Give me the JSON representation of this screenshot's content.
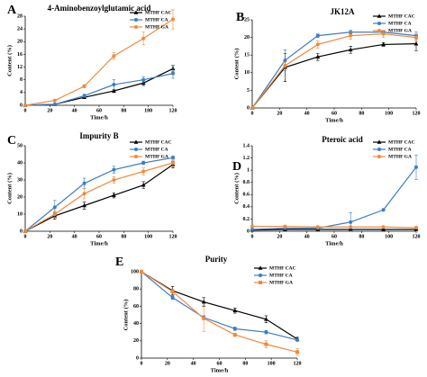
{
  "chart_data": [
    {
      "type": "line",
      "panel_label": "A",
      "title": "4-Aminobenzoylglutamic acid",
      "xlabel": "Time/h",
      "ylabel": "Content (%)",
      "x": [
        0,
        24,
        48,
        72,
        96,
        120
      ],
      "xlim": [
        0,
        120
      ],
      "xticks": [
        0,
        20,
        40,
        60,
        80,
        100,
        120
      ],
      "ylim": [
        0,
        28
      ],
      "yticks": [
        0,
        4,
        8,
        12,
        16,
        20,
        24,
        28
      ],
      "legend": "upper right",
      "series": [
        {
          "name": "MTHF CAC",
          "color": "#000000",
          "marker": "triangle",
          "values": [
            0,
            0.3,
            2.5,
            4.5,
            7,
            11.5
          ],
          "errors": [
            0,
            0.2,
            0.3,
            0.5,
            0.8,
            1
          ]
        },
        {
          "name": "MTHF CA",
          "color": "#3b7dc4",
          "marker": "circle",
          "values": [
            0,
            0.3,
            3,
            6.5,
            8,
            10
          ],
          "errors": [
            0,
            0.2,
            0.5,
            1.5,
            1,
            1.5
          ]
        },
        {
          "name": "MTHF GA",
          "color": "#f08a3c",
          "marker": "circle",
          "values": [
            0,
            1.5,
            6,
            15.5,
            21,
            27
          ],
          "errors": [
            0,
            0.3,
            0.5,
            1,
            2,
            3
          ]
        }
      ]
    },
    {
      "type": "line",
      "panel_label": "B",
      "title": "JK12A",
      "xlabel": "Time/h",
      "ylabel": "Content (%)",
      "x": [
        0,
        24,
        48,
        72,
        96,
        120
      ],
      "xlim": [
        0,
        120
      ],
      "xticks": [
        0,
        20,
        40,
        60,
        80,
        100,
        120
      ],
      "ylim": [
        0,
        25
      ],
      "yticks": [
        0,
        5,
        10,
        15,
        20,
        25
      ],
      "legend": "upper right",
      "series": [
        {
          "name": "MTHF CAC",
          "color": "#000000",
          "marker": "triangle",
          "values": [
            0,
            11.5,
            14.5,
            16.5,
            18,
            18.2
          ],
          "errors": [
            0,
            4,
            1,
            1,
            0.5,
            2
          ]
        },
        {
          "name": "MTHF CA",
          "color": "#3b7dc4",
          "marker": "circle",
          "values": [
            0,
            13.5,
            20.5,
            21.5,
            21.5,
            20.5
          ],
          "errors": [
            0,
            3,
            0.5,
            0.5,
            0.5,
            1
          ]
        },
        {
          "name": "MTHF GA",
          "color": "#f08a3c",
          "marker": "circle",
          "values": [
            0,
            12,
            18,
            20.5,
            21,
            20
          ],
          "errors": [
            0,
            1,
            1,
            1,
            1,
            1
          ]
        }
      ]
    },
    {
      "type": "line",
      "panel_label": "C",
      "title": "Impurity B",
      "xlabel": "Time/h",
      "ylabel": "Content (%)",
      "x": [
        0,
        24,
        48,
        72,
        96,
        120
      ],
      "xlim": [
        0,
        120
      ],
      "xticks": [
        0,
        20,
        40,
        60,
        80,
        100,
        120
      ],
      "ylim": [
        0,
        50
      ],
      "yticks": [
        0,
        10,
        20,
        30,
        40,
        50
      ],
      "legend": "upper right",
      "series": [
        {
          "name": "MTHF CAC",
          "color": "#000000",
          "marker": "triangle",
          "values": [
            0,
            9,
            15,
            21,
            27,
            39
          ],
          "errors": [
            0,
            2,
            2,
            1.5,
            2,
            2
          ]
        },
        {
          "name": "MTHF CA",
          "color": "#3b7dc4",
          "marker": "circle",
          "values": [
            0,
            14,
            28,
            36,
            40,
            43
          ],
          "errors": [
            0,
            4,
            3,
            2,
            1,
            1
          ]
        },
        {
          "name": "MTHF GA",
          "color": "#f08a3c",
          "marker": "circle",
          "values": [
            0,
            10,
            22,
            30,
            35,
            40
          ],
          "errors": [
            0,
            2,
            3,
            2,
            2,
            2
          ]
        }
      ]
    },
    {
      "type": "line",
      "panel_label": "D",
      "title": "Pteroic acid",
      "xlabel": "Time/h",
      "ylabel": "Content (%)",
      "x": [
        0,
        24,
        48,
        72,
        96,
        120
      ],
      "xlim": [
        0,
        120
      ],
      "xticks": [
        0,
        20,
        40,
        60,
        80,
        100,
        120
      ],
      "ylim": [
        0,
        1.4
      ],
      "yticks": [
        0,
        0.2,
        0.4,
        0.6,
        0.8,
        1,
        1.2,
        1.4
      ],
      "legend": "upper right",
      "series": [
        {
          "name": "MTHF CAC",
          "color": "#000000",
          "marker": "triangle",
          "values": [
            0.02,
            0.03,
            0.03,
            0.03,
            0.03,
            0.03
          ],
          "errors": [
            0,
            0,
            0,
            0,
            0,
            0
          ]
        },
        {
          "name": "MTHF CA",
          "color": "#3b7dc4",
          "marker": "circle",
          "values": [
            0.03,
            0.05,
            0.05,
            0.15,
            0.35,
            1.05
          ],
          "errors": [
            0,
            0,
            0,
            0.15,
            0,
            0.2
          ]
        },
        {
          "name": "MTHF GA",
          "color": "#f08a3c",
          "marker": "circle",
          "values": [
            0.08,
            0.08,
            0.07,
            0.07,
            0.07,
            0.06
          ],
          "errors": [
            0,
            0,
            0,
            0,
            0,
            0
          ]
        }
      ]
    },
    {
      "type": "line",
      "panel_label": "E",
      "title": "Purity",
      "xlabel": "Time/h",
      "ylabel": "Content (%)",
      "x": [
        0,
        24,
        48,
        72,
        96,
        120
      ],
      "xlim": [
        0,
        120
      ],
      "xticks": [
        0,
        20,
        40,
        60,
        80,
        100,
        120
      ],
      "ylim": [
        0,
        100
      ],
      "yticks": [
        0,
        20,
        40,
        60,
        80,
        100
      ],
      "legend": "upper right",
      "series": [
        {
          "name": "MTHF CAC",
          "color": "#000000",
          "marker": "triangle",
          "values": [
            100,
            78,
            65,
            55,
            45,
            22
          ],
          "errors": [
            1,
            5,
            5,
            3,
            4,
            2
          ]
        },
        {
          "name": "MTHF CA",
          "color": "#3b7dc4",
          "marker": "circle",
          "values": [
            100,
            70,
            47,
            34,
            30,
            21
          ],
          "errors": [
            1,
            2,
            2,
            2,
            2,
            1
          ]
        },
        {
          "name": "MTHF GA",
          "color": "#f08a3c",
          "marker": "square",
          "values": [
            100,
            77,
            46,
            27,
            16,
            7
          ],
          "errors": [
            1,
            3,
            15,
            2,
            4,
            4
          ]
        }
      ]
    }
  ]
}
